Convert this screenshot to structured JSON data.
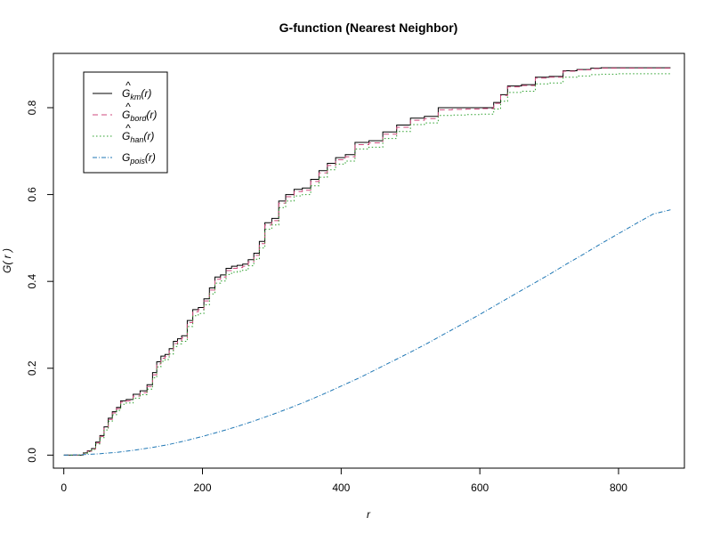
{
  "chart_data": {
    "type": "line",
    "title": "G-function (Nearest Neighbor)",
    "xlabel": "r",
    "ylabel": "G( r )",
    "xlim": [
      -15,
      895
    ],
    "ylim": [
      -0.03,
      0.925
    ],
    "xticks": [
      0,
      200,
      400,
      600,
      800
    ],
    "yticks": [
      0.0,
      0.2,
      0.4,
      0.6,
      0.8
    ],
    "xtick_labels": [
      "0",
      "200",
      "400",
      "600",
      "800"
    ],
    "ytick_labels": [
      "0.0",
      "0.2",
      "0.4",
      "0.6",
      "0.8"
    ],
    "grid": false,
    "legend_position": "top-left",
    "series": [
      {
        "name": "km",
        "label_main": "G",
        "label_sub": "km",
        "label_arg": "(r)",
        "hat": true,
        "color": "#000000",
        "dash": "",
        "x": [
          0,
          22,
          28,
          34,
          40,
          46,
          52,
          58,
          64,
          70,
          76,
          82,
          90,
          100,
          110,
          120,
          128,
          134,
          140,
          146,
          152,
          158,
          164,
          170,
          178,
          186,
          194,
          202,
          210,
          218,
          226,
          234,
          242,
          250,
          258,
          266,
          274,
          282,
          290,
          300,
          310,
          320,
          332,
          344,
          356,
          368,
          380,
          392,
          406,
          420,
          440,
          460,
          480,
          500,
          520,
          540,
          560,
          580,
          600,
          620,
          630,
          640,
          660,
          680,
          700,
          720,
          740,
          760,
          775,
          800,
          875
        ],
        "y": [
          0.0,
          0.0,
          0.005,
          0.01,
          0.015,
          0.03,
          0.045,
          0.065,
          0.085,
          0.1,
          0.11,
          0.125,
          0.128,
          0.14,
          0.148,
          0.162,
          0.19,
          0.215,
          0.228,
          0.232,
          0.245,
          0.262,
          0.268,
          0.275,
          0.31,
          0.335,
          0.34,
          0.36,
          0.385,
          0.41,
          0.415,
          0.43,
          0.435,
          0.437,
          0.44,
          0.45,
          0.465,
          0.492,
          0.535,
          0.545,
          0.585,
          0.6,
          0.612,
          0.615,
          0.635,
          0.655,
          0.672,
          0.685,
          0.692,
          0.72,
          0.724,
          0.744,
          0.76,
          0.776,
          0.78,
          0.8,
          0.8,
          0.8,
          0.8,
          0.812,
          0.83,
          0.85,
          0.853,
          0.87,
          0.872,
          0.885,
          0.888,
          0.891,
          0.892,
          0.892,
          0.892
        ]
      },
      {
        "name": "bord",
        "label_main": "G",
        "label_sub": "bord",
        "label_arg": "(r)",
        "hat": true,
        "color": "#cf4a7c",
        "dash": "6,4",
        "x": [
          0,
          22,
          28,
          34,
          40,
          46,
          52,
          58,
          64,
          70,
          76,
          82,
          90,
          100,
          110,
          120,
          128,
          134,
          140,
          146,
          152,
          158,
          164,
          170,
          178,
          186,
          194,
          202,
          210,
          218,
          226,
          234,
          242,
          250,
          258,
          266,
          274,
          282,
          290,
          300,
          310,
          320,
          332,
          344,
          356,
          368,
          380,
          392,
          406,
          420,
          440,
          460,
          480,
          500,
          520,
          540,
          560,
          580,
          600,
          620,
          630,
          640,
          660,
          680,
          700,
          720,
          740,
          760,
          775,
          800,
          875
        ],
        "y": [
          0.0,
          0.0,
          0.004,
          0.009,
          0.014,
          0.028,
          0.043,
          0.062,
          0.082,
          0.097,
          0.107,
          0.122,
          0.125,
          0.136,
          0.144,
          0.158,
          0.185,
          0.21,
          0.223,
          0.227,
          0.24,
          0.257,
          0.263,
          0.27,
          0.305,
          0.33,
          0.335,
          0.355,
          0.38,
          0.405,
          0.41,
          0.425,
          0.43,
          0.432,
          0.435,
          0.445,
          0.46,
          0.487,
          0.53,
          0.54,
          0.58,
          0.595,
          0.607,
          0.61,
          0.63,
          0.65,
          0.667,
          0.68,
          0.687,
          0.715,
          0.719,
          0.739,
          0.755,
          0.771,
          0.775,
          0.795,
          0.796,
          0.797,
          0.798,
          0.81,
          0.828,
          0.848,
          0.851,
          0.868,
          0.87,
          0.884,
          0.887,
          0.89,
          0.891,
          0.891,
          0.891
        ]
      },
      {
        "name": "han",
        "label_main": "G",
        "label_sub": "han",
        "label_arg": "(r)",
        "hat": true,
        "color": "#2ca02c",
        "dash": "1.5,2.5",
        "x": [
          0,
          22,
          28,
          34,
          40,
          46,
          52,
          58,
          64,
          70,
          76,
          82,
          90,
          100,
          110,
          120,
          128,
          134,
          140,
          146,
          152,
          158,
          164,
          170,
          178,
          186,
          194,
          202,
          210,
          218,
          226,
          234,
          242,
          250,
          258,
          266,
          274,
          282,
          290,
          300,
          310,
          320,
          332,
          344,
          356,
          368,
          380,
          392,
          406,
          420,
          440,
          460,
          480,
          500,
          520,
          540,
          560,
          580,
          600,
          620,
          630,
          640,
          660,
          680,
          700,
          720,
          740,
          760,
          775,
          800,
          875
        ],
        "y": [
          0.0,
          0.0,
          0.004,
          0.008,
          0.013,
          0.026,
          0.04,
          0.058,
          0.078,
          0.093,
          0.103,
          0.117,
          0.12,
          0.131,
          0.139,
          0.152,
          0.178,
          0.203,
          0.216,
          0.22,
          0.233,
          0.25,
          0.256,
          0.262,
          0.296,
          0.321,
          0.326,
          0.346,
          0.371,
          0.396,
          0.401,
          0.416,
          0.421,
          0.423,
          0.426,
          0.436,
          0.451,
          0.477,
          0.52,
          0.53,
          0.57,
          0.585,
          0.597,
          0.6,
          0.62,
          0.64,
          0.657,
          0.67,
          0.677,
          0.705,
          0.709,
          0.729,
          0.745,
          0.761,
          0.765,
          0.782,
          0.783,
          0.784,
          0.785,
          0.797,
          0.815,
          0.835,
          0.838,
          0.855,
          0.857,
          0.87,
          0.873,
          0.876,
          0.877,
          0.878,
          0.878
        ]
      },
      {
        "name": "pois",
        "label_main": "G",
        "label_sub": "pois",
        "label_arg": "(r)",
        "hat": false,
        "color": "#1f77b4",
        "dash": "5,2,1,2",
        "x": [
          0,
          25,
          50,
          75,
          100,
          125,
          150,
          175,
          200,
          225,
          250,
          275,
          300,
          325,
          350,
          375,
          400,
          425,
          450,
          475,
          500,
          525,
          550,
          575,
          600,
          625,
          650,
          675,
          700,
          725,
          750,
          775,
          800,
          825,
          850,
          875
        ],
        "y": [
          0.0,
          0.001,
          0.003,
          0.006,
          0.011,
          0.017,
          0.024,
          0.033,
          0.043,
          0.054,
          0.066,
          0.079,
          0.093,
          0.108,
          0.124,
          0.141,
          0.159,
          0.177,
          0.197,
          0.217,
          0.237,
          0.258,
          0.28,
          0.302,
          0.324,
          0.347,
          0.37,
          0.393,
          0.416,
          0.44,
          0.463,
          0.487,
          0.51,
          0.533,
          0.555,
          0.565
        ]
      }
    ]
  }
}
